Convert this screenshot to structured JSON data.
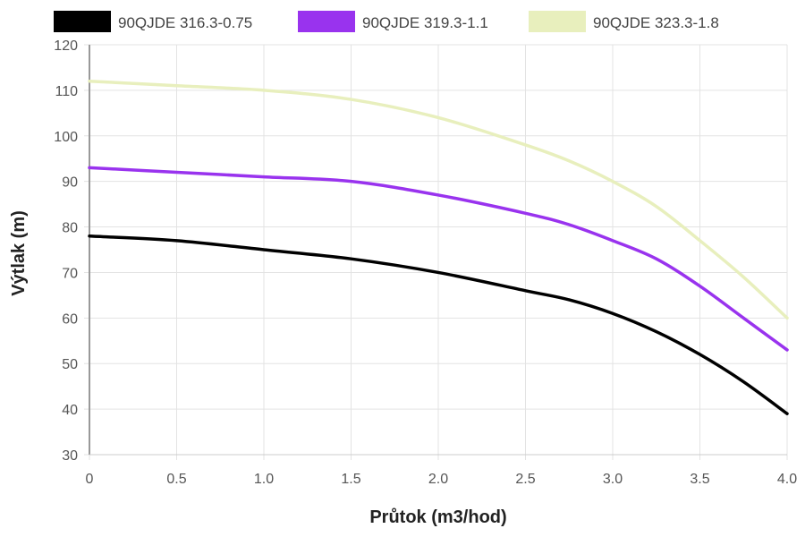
{
  "chart_data": {
    "type": "line",
    "xlabel": "Průtok (m3/hod)",
    "ylabel": "Výtlak (m)",
    "xlim": [
      0,
      4.0
    ],
    "ylim": [
      30,
      120
    ],
    "x_ticks": [
      "0",
      "0.5",
      "1.0",
      "1.5",
      "2.0",
      "2.5",
      "3.0",
      "3.5",
      "4.0"
    ],
    "y_ticks": [
      "30",
      "40",
      "50",
      "60",
      "70",
      "80",
      "90",
      "100",
      "110",
      "120"
    ],
    "grid": true,
    "legend_position": "top",
    "x": [
      0,
      0.5,
      1.0,
      1.5,
      2.0,
      2.5,
      2.75,
      3.0,
      3.25,
      3.5,
      3.75,
      4.0
    ],
    "series": [
      {
        "name": "90QJDE 316.3-0.75",
        "color": "#000000",
        "values": [
          78,
          77,
          75,
          73,
          70,
          66,
          64,
          61,
          57,
          52,
          46,
          39
        ]
      },
      {
        "name": "90QJDE 319.3-1.1",
        "color": "#9933ee",
        "values": [
          93,
          92,
          91,
          90,
          87,
          83,
          80.5,
          77,
          73,
          67,
          60,
          53
        ]
      },
      {
        "name": "90QJDE 323.3-1.8",
        "color": "#e8efbd",
        "values": [
          112,
          111,
          110,
          108,
          104,
          98,
          94.5,
          90,
          84.5,
          77,
          69,
          60
        ]
      }
    ]
  }
}
